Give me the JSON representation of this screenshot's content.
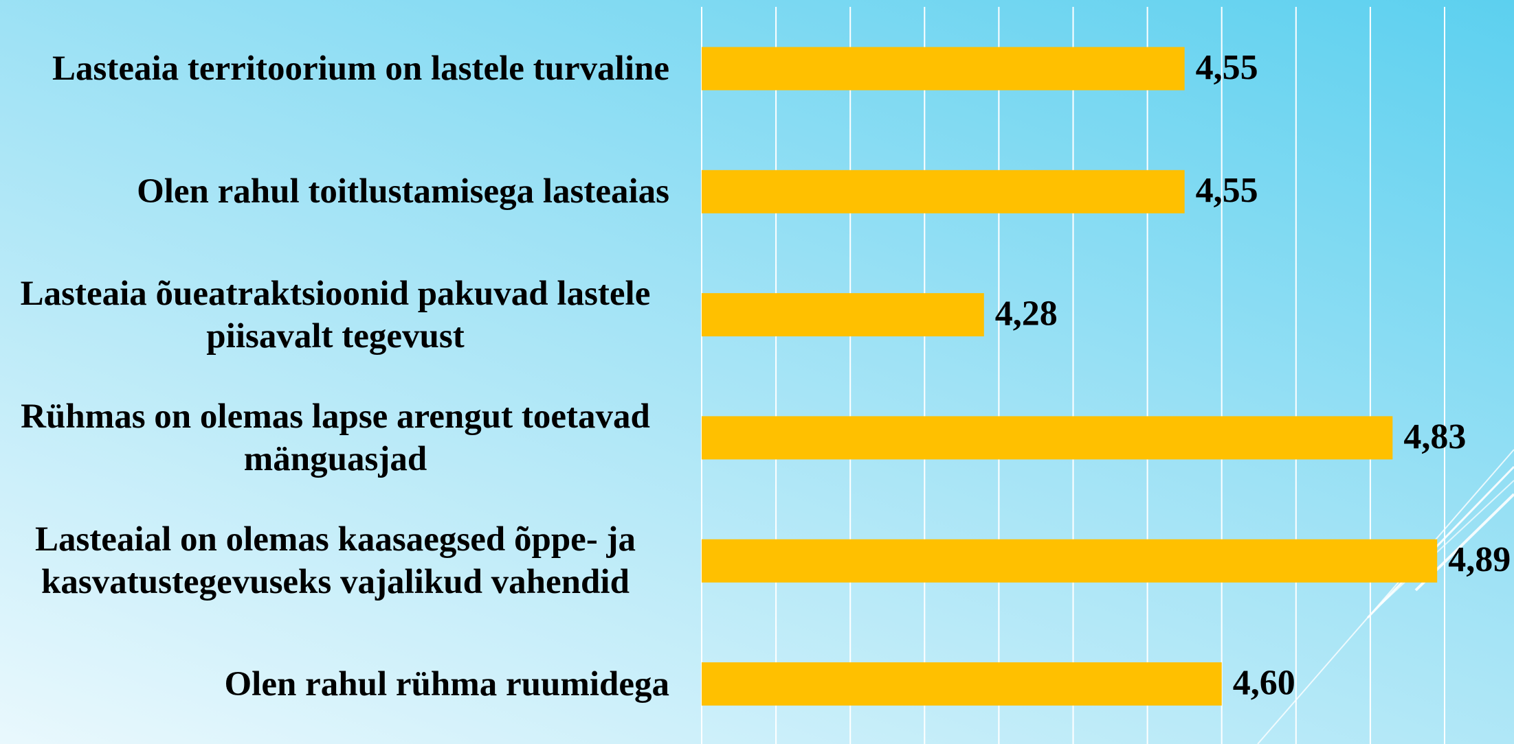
{
  "chart_data": {
    "type": "bar",
    "orientation": "horizontal",
    "categories": [
      "Lasteaia territoorium on lastele turvaline",
      "Olen rahul toitlustamisega lasteaias",
      "Lasteaia õueatraktsioonid pakuvad lastele piisavalt tegevust",
      "Rühmas on olemas lapse arengut toetavad mänguasjad",
      "Lasteaial on olemas kaasaegsed õppe- ja kasvatustegevuseks vajalikud vahendid",
      "Olen rahul rühma ruumidega"
    ],
    "values": [
      4.55,
      4.55,
      4.28,
      4.83,
      4.89,
      4.6
    ],
    "value_labels": [
      "4,55",
      "4,55",
      "4,28",
      "4,83",
      "4,89",
      "4,60"
    ],
    "color": "#ffc000",
    "xlim": [
      3.9,
      4.9
    ],
    "xticks": [
      3.9,
      4.0,
      4.1,
      4.2,
      4.3,
      4.4,
      4.5,
      4.6,
      4.7,
      4.8,
      4.9
    ],
    "grid": true
  }
}
